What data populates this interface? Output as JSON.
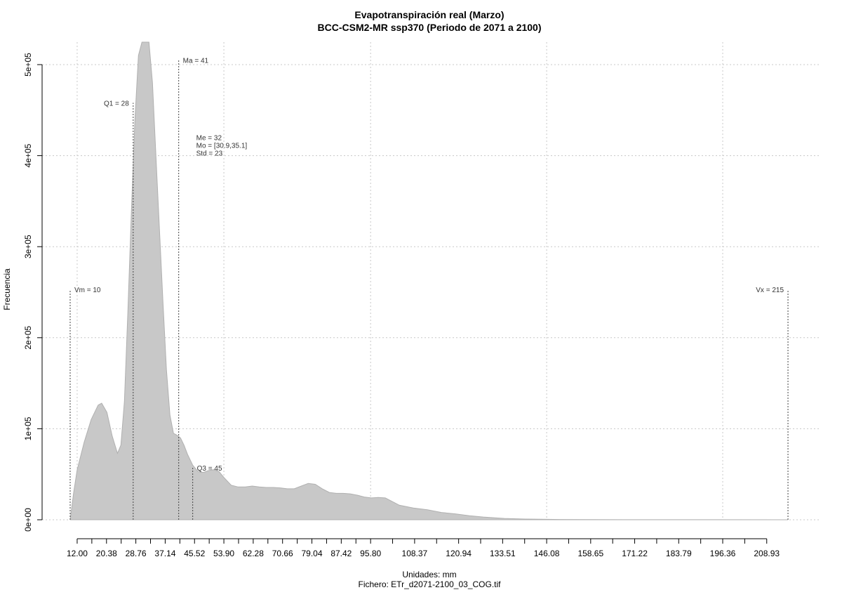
{
  "chart_data": {
    "type": "area",
    "title": "Evapotranspiración real (Marzo)",
    "subtitle": "BCC-CSM2-MR ssp370 (Periodo de 2071 a 2100)",
    "xlabel": "Unidades: mm",
    "footer": "Fichero: ETr_d2071-2100_03_COG.tif",
    "ylabel": "Frecuencia",
    "xlim": [
      8,
      218
    ],
    "ylim": [
      0,
      520000
    ],
    "grid": true,
    "fill_color": "#c8c8c8",
    "x_ticks": [
      12.0,
      20.38,
      28.76,
      37.14,
      45.52,
      53.9,
      62.28,
      70.66,
      79.04,
      87.42,
      95.8,
      108.37,
      120.94,
      133.51,
      146.08,
      158.65,
      171.22,
      183.79,
      196.36,
      208.93
    ],
    "x_tick_labels": [
      "12.00",
      "20.38",
      "28.76",
      "37.14",
      "45.52",
      "53.90",
      "62.28",
      "70.66",
      "79.04",
      "87.42",
      "95.80",
      "108.37",
      "120.94",
      "133.51",
      "146.08",
      "158.65",
      "171.22",
      "183.79",
      "196.36",
      "208.93"
    ],
    "y_ticks": [
      0,
      100000,
      200000,
      300000,
      400000,
      500000
    ],
    "y_tick_labels": [
      "0e+00",
      "1e+05",
      "2e+05",
      "3e+05",
      "4e+05",
      "5e+05"
    ],
    "x_grid": [
      12.0,
      20.38,
      28.76,
      37.14,
      45.52,
      53.9,
      62.28,
      70.66,
      79.04,
      87.42,
      95.8,
      108.37,
      120.94,
      133.51,
      146.08,
      158.65,
      171.22,
      183.79,
      196.36,
      208.93
    ],
    "x": [
      10,
      11,
      12,
      14,
      16,
      18,
      19,
      20.5,
      22,
      23.5,
      24.5,
      25.5,
      26.5,
      27.5,
      28.5,
      29.5,
      30.5,
      31.5,
      32.5,
      33.5,
      34.5,
      35.5,
      36.5,
      37.5,
      38.5,
      39.5,
      40.5,
      41.5,
      42.5,
      43.5,
      45,
      46.5,
      48,
      49.5,
      51,
      52.5,
      54,
      56,
      58,
      60,
      62,
      64,
      66,
      68,
      70,
      72,
      74,
      76,
      78,
      80,
      82,
      84,
      86,
      88,
      90,
      92,
      94,
      96,
      98,
      100,
      104,
      108,
      112,
      116,
      120,
      124,
      128,
      134,
      140,
      150,
      170,
      190,
      215
    ],
    "values": [
      0,
      30000,
      55000,
      85000,
      110000,
      126000,
      128000,
      118000,
      92000,
      73000,
      82000,
      130000,
      230000,
      340000,
      440000,
      510000,
      545000,
      555000,
      540000,
      480000,
      400000,
      320000,
      240000,
      165000,
      115000,
      95000,
      93000,
      90000,
      82000,
      72000,
      60000,
      53000,
      52000,
      54000,
      55000,
      53000,
      46000,
      38000,
      36000,
      36000,
      37000,
      36000,
      35500,
      35500,
      35000,
      34000,
      34000,
      37000,
      40000,
      39000,
      34000,
      30000,
      29000,
      29000,
      28500,
      27000,
      25000,
      24000,
      24500,
      24000,
      16000,
      13000,
      11000,
      8000,
      6500,
      4500,
      3000,
      1500,
      800,
      300,
      100,
      50,
      0
    ],
    "markers": [
      {
        "name": "Vm",
        "x": 10,
        "label": "Vm = 10",
        "top": 253000,
        "label_side": "right"
      },
      {
        "name": "Q1",
        "x": 28,
        "label": "Q1 = 28",
        "top": 458000,
        "label_side": "left"
      },
      {
        "name": "Ma",
        "x": 41,
        "label": "Ma = 41",
        "top": 505000,
        "label_side": "right"
      },
      {
        "name": "Q3",
        "x": 45,
        "label": "Q3 = 45",
        "top": 57000,
        "label_side": "right"
      },
      {
        "name": "Vx",
        "x": 215,
        "label": "Vx = 215",
        "top": 253000,
        "label_side": "left"
      }
    ],
    "stats_block": [
      "Me = 32",
      "Mo = [30.9,35.1]",
      "Std = 23"
    ],
    "stats_anchor": {
      "x": 46,
      "y": 417000
    }
  }
}
